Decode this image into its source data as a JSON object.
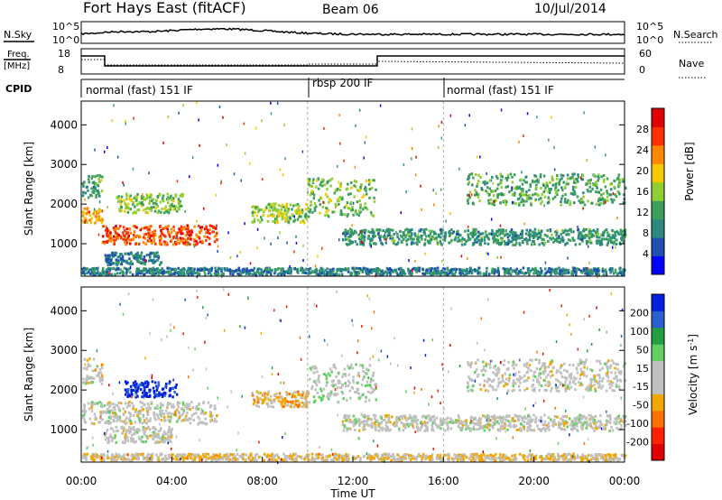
{
  "header": {
    "title": "Fort Hays East (fitACF)",
    "beam": "Beam 06",
    "date": "10/Jul/2014"
  },
  "strip_labels": {
    "nsky": "N.Sky",
    "nsearch": "N.Search",
    "freq": "Freq.",
    "freq_unit": "[MHz]",
    "nave": "Nave",
    "cpid": "CPID",
    "nsky_ticks": [
      "10^5",
      "10^0"
    ],
    "nsearch_ticks": [
      "10^5",
      "10^0"
    ],
    "freq_ticks": [
      "18",
      "8"
    ],
    "nave_ticks": [
      "60",
      "0"
    ]
  },
  "cpid_segments": [
    {
      "label": "normal (fast) 151 IF",
      "start_hour": 0
    },
    {
      "label": "rbsp 200 IF",
      "start_hour": 10
    },
    {
      "label": "normal (fast) 151 IF",
      "start_hour": 16
    }
  ],
  "colors": {
    "power_scale": [
      "#0000ff",
      "#1f4fb0",
      "#2a8a80",
      "#3da05a",
      "#8fcf30",
      "#f5c800",
      "#ff8800",
      "#ff3000",
      "#e00000"
    ],
    "velocity_scale": [
      "#0020e0",
      "#2a5fd0",
      "#22a040",
      "#60d060",
      "#c0c0c0",
      "#c0c0c0",
      "#f0a800",
      "#ff7000",
      "#ff2000",
      "#e00000"
    ],
    "groundscatter": "#c0c0c0"
  },
  "chart_data": [
    {
      "type": "heatmap",
      "name": "power",
      "xlabel": "",
      "ylabel": "Slant Range [km]",
      "xlim": [
        0,
        24
      ],
      "ylim": [
        180,
        4600
      ],
      "yticks": [
        1000,
        2000,
        3000,
        4000
      ],
      "colorbar": {
        "label": "Power [dB]",
        "ticks": [
          "4",
          "8",
          "12",
          "16",
          "20",
          "24",
          "28"
        ],
        "range": [
          0,
          30
        ]
      },
      "echo_bands": [
        {
          "t0": 0.0,
          "t1": 0.9,
          "r_center": 1750,
          "r_width": 250,
          "value": 20
        },
        {
          "t0": 0.0,
          "t1": 0.9,
          "r_center": 2500,
          "r_width": 400,
          "value": 10
        },
        {
          "t0": 0.9,
          "t1": 6.0,
          "r_center": 1250,
          "r_width": 300,
          "value": 24
        },
        {
          "t0": 1.5,
          "t1": 4.5,
          "r_center": 2050,
          "r_width": 300,
          "value": 14
        },
        {
          "t0": 1.0,
          "t1": 3.5,
          "r_center": 650,
          "r_width": 200,
          "value": 8
        },
        {
          "t0": 7.5,
          "t1": 10.0,
          "r_center": 1800,
          "r_width": 300,
          "value": 15
        },
        {
          "t0": 10.0,
          "t1": 13.0,
          "r_center": 2200,
          "r_width": 600,
          "value": 14
        },
        {
          "t0": 11.5,
          "t1": 24.0,
          "r_center": 1200,
          "r_width": 250,
          "value": 10
        },
        {
          "t0": 17.0,
          "t1": 24.0,
          "r_center": 2400,
          "r_width": 500,
          "value": 12
        },
        {
          "t0": 0.0,
          "t1": 24.0,
          "r_center": 300,
          "r_width": 150,
          "value": 8
        }
      ]
    },
    {
      "type": "heatmap",
      "name": "velocity",
      "xlabel": "Time UT",
      "ylabel": "Slant Range [km]",
      "xlim": [
        0,
        24
      ],
      "ylim": [
        180,
        4600
      ],
      "yticks": [
        1000,
        2000,
        3000,
        4000
      ],
      "xticks": [
        "00:00",
        "04:00",
        "08:00",
        "12:00",
        "16:00",
        "20:00",
        "00:00"
      ],
      "colorbar": {
        "label": "Velocity [m s^-1]",
        "ticks": [
          "200",
          "100",
          "50",
          "15",
          "-15",
          "-50",
          "-100",
          "-200"
        ],
        "range": [
          -250,
          250
        ]
      },
      "echo_bands": [
        {
          "t0": 0.0,
          "t1": 0.9,
          "r_center": 2500,
          "r_width": 400,
          "value": 0
        },
        {
          "t0": 0.0,
          "t1": 6.0,
          "r_center": 1450,
          "r_width": 350,
          "value": 0
        },
        {
          "t0": 1.9,
          "t1": 4.2,
          "r_center": 2050,
          "r_width": 250,
          "value": 220
        },
        {
          "t0": 1.0,
          "t1": 4.0,
          "r_center": 900,
          "r_width": 250,
          "value": 0
        },
        {
          "t0": 7.5,
          "t1": 10.0,
          "r_center": 1800,
          "r_width": 250,
          "value": -60
        },
        {
          "t0": 10.0,
          "t1": 13.0,
          "r_center": 2200,
          "r_width": 600,
          "value": 30
        },
        {
          "t0": 11.5,
          "t1": 24.0,
          "r_center": 1200,
          "r_width": 250,
          "value": 0
        },
        {
          "t0": 17.0,
          "t1": 24.0,
          "r_center": 2400,
          "r_width": 500,
          "value": 0
        },
        {
          "t0": 0.0,
          "t1": 24.0,
          "r_center": 300,
          "r_width": 150,
          "value": -40
        }
      ]
    }
  ]
}
